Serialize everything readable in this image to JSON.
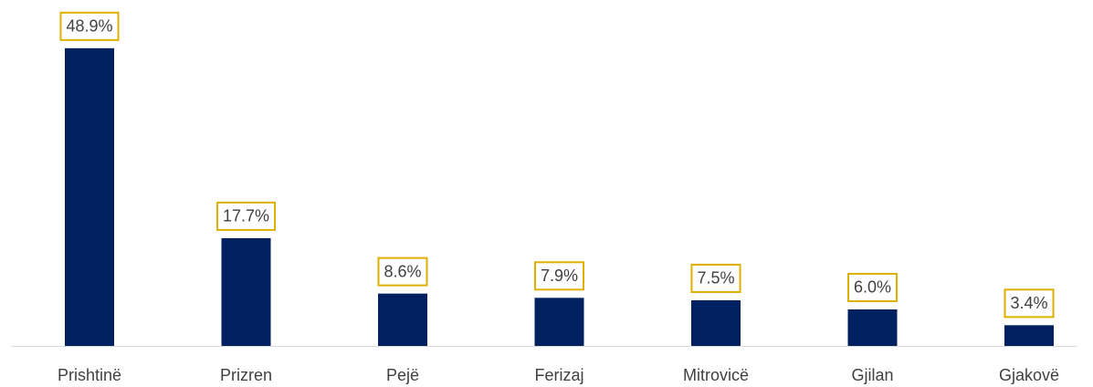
{
  "chart_data": {
    "type": "bar",
    "categories": [
      "Prishtinë",
      "Prizren",
      "Pejë",
      "Ferizaj",
      "Mitrovicë",
      "Gjilan",
      "Gjakovë"
    ],
    "values": [
      48.9,
      17.7,
      8.6,
      7.9,
      7.5,
      6.0,
      3.4
    ],
    "value_labels": [
      "48.9%",
      "17.7%",
      "8.6%",
      "7.9%",
      "7.5%",
      "6.0%",
      "3.4%"
    ],
    "color": "#002060",
    "label_border_color": "#e0b000"
  }
}
